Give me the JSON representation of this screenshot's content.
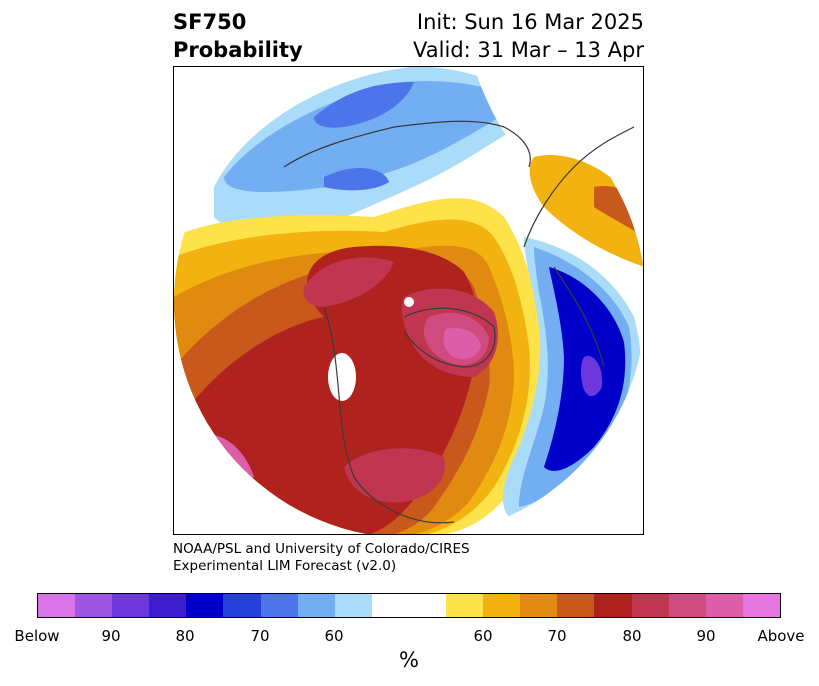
{
  "title": {
    "variable": "SF750",
    "product": "Probability",
    "init": "Init: Sun 16 Mar 2025",
    "valid": "Valid: 31 Mar – 13 Apr"
  },
  "credit": {
    "line1": "NOAA/PSL and University of Colorado/CIRES",
    "line2": "Experimental LIM Forecast (v2.0)"
  },
  "colorbar": {
    "unit": "%",
    "colors": [
      "#d873e8",
      "#9d55e2",
      "#6c38dc",
      "#3c1ccf",
      "#0000c8",
      "#2440d8",
      "#4d74e8",
      "#73aef2",
      "#aadcfa",
      "#ffffff",
      "#ffffff",
      "#fde24a",
      "#f2b20f",
      "#e08a12",
      "#c8581c",
      "#b0221e",
      "#c03550",
      "#cf4b80",
      "#dc5ea8",
      "#e775e0"
    ],
    "ticks": [
      "Below",
      "90",
      "80",
      "70",
      "60",
      "60",
      "70",
      "80",
      "90",
      "Above"
    ],
    "palette": {
      "purple_light": "#d873e8",
      "blue_dark": "#0000c8",
      "blue_mid": "#4d74e8",
      "blue_light": "#73aef2",
      "blue_pale": "#aadcfa",
      "yellow": "#fde24a",
      "gold": "#f2b20f",
      "orange": "#e08a12",
      "rust": "#c8581c",
      "red": "#b0221e",
      "crimson": "#c03550",
      "rose": "#cf4b80",
      "pink": "#dc5ea8",
      "magenta": "#e775e0"
    }
  }
}
